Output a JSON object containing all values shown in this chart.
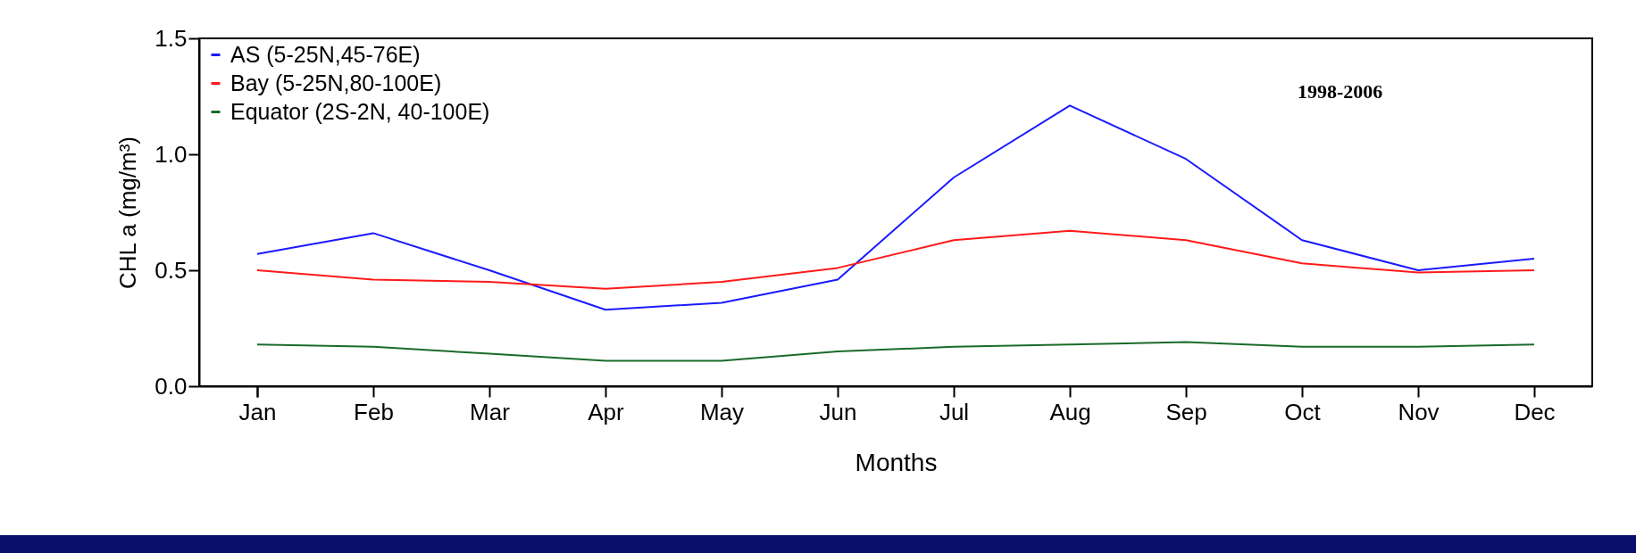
{
  "chart_data": {
    "type": "line",
    "xlabel": "Months",
    "ylabel": "CHL a (mg/m³)",
    "categories": [
      "Jan",
      "Feb",
      "Mar",
      "Apr",
      "May",
      "Jun",
      "Jul",
      "Aug",
      "Sep",
      "Oct",
      "Nov",
      "Dec"
    ],
    "series": [
      {
        "name": "AS (5-25N,45-76E)",
        "color": "#1a1aff",
        "values": [
          0.57,
          0.66,
          0.5,
          0.33,
          0.36,
          0.46,
          0.9,
          1.21,
          0.98,
          0.63,
          0.5,
          0.55
        ]
      },
      {
        "name": "Bay (5-25N,80-100E)",
        "color": "#ff1a1a",
        "values": [
          0.5,
          0.46,
          0.45,
          0.42,
          0.45,
          0.51,
          0.63,
          0.67,
          0.63,
          0.53,
          0.49,
          0.5
        ]
      },
      {
        "name": "Equator (2S-2N, 40-100E)",
        "color": "#1a6b2a",
        "values": [
          0.18,
          0.17,
          0.14,
          0.11,
          0.11,
          0.15,
          0.17,
          0.18,
          0.19,
          0.17,
          0.17,
          0.18
        ]
      }
    ],
    "ylim": [
      0,
      1.5
    ],
    "yticks": [
      {
        "value": 0,
        "label": "0.0"
      },
      0.5,
      {
        "value": 1,
        "label": "1.0"
      },
      1.5
    ],
    "grid": false,
    "legend": "top left",
    "marker": "none",
    "line_style": "solid",
    "annotations": [
      "1998-2006"
    ]
  }
}
